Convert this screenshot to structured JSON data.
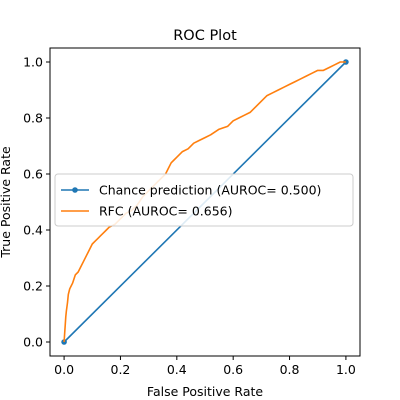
{
  "chart_data": {
    "type": "line",
    "title": "ROC Plot",
    "xlabel": "False Positive Rate",
    "ylabel": "True Positive Rate",
    "xlim": [
      -0.05,
      1.05
    ],
    "ylim": [
      -0.05,
      1.05
    ],
    "x_ticks": [
      0.0,
      0.2,
      0.4,
      0.6,
      0.8,
      1.0
    ],
    "x_tick_labels": [
      "0.0",
      "0.2",
      "0.4",
      "0.6",
      "0.8",
      "1.0"
    ],
    "y_ticks": [
      0.0,
      0.2,
      0.4,
      0.6,
      0.8,
      1.0
    ],
    "y_tick_labels": [
      "0.0",
      "0.2",
      "0.4",
      "0.6",
      "0.8",
      "1.0"
    ],
    "grid": false,
    "legend_position": "center-left",
    "series": [
      {
        "name": "Chance prediction (AUROC= 0.500)",
        "color": "#1f77b4",
        "marker": "circle",
        "x": [
          0.0,
          1.0
        ],
        "y": [
          0.0,
          1.0
        ]
      },
      {
        "name": "RFC (AUROC= 0.656)",
        "color": "#ff7f0e",
        "marker": "none",
        "x": [
          0.0,
          0.002,
          0.004,
          0.006,
          0.008,
          0.012,
          0.015,
          0.02,
          0.025,
          0.03,
          0.04,
          0.05,
          0.06,
          0.07,
          0.08,
          0.09,
          0.1,
          0.11,
          0.12,
          0.13,
          0.14,
          0.15,
          0.16,
          0.18,
          0.2,
          0.22,
          0.24,
          0.26,
          0.28,
          0.3,
          0.32,
          0.34,
          0.36,
          0.37,
          0.38,
          0.39,
          0.4,
          0.42,
          0.44,
          0.46,
          0.48,
          0.5,
          0.52,
          0.55,
          0.58,
          0.6,
          0.62,
          0.64,
          0.66,
          0.68,
          0.7,
          0.72,
          0.74,
          0.76,
          0.78,
          0.8,
          0.82,
          0.84,
          0.86,
          0.88,
          0.9,
          0.92,
          0.94,
          0.96,
          0.98,
          1.0
        ],
        "y": [
          0.0,
          0.03,
          0.06,
          0.09,
          0.11,
          0.14,
          0.17,
          0.19,
          0.2,
          0.21,
          0.24,
          0.25,
          0.27,
          0.29,
          0.31,
          0.33,
          0.35,
          0.36,
          0.37,
          0.38,
          0.39,
          0.4,
          0.41,
          0.42,
          0.44,
          0.46,
          0.47,
          0.49,
          0.52,
          0.54,
          0.56,
          0.58,
          0.6,
          0.62,
          0.64,
          0.65,
          0.66,
          0.68,
          0.69,
          0.71,
          0.72,
          0.73,
          0.74,
          0.76,
          0.77,
          0.79,
          0.8,
          0.81,
          0.82,
          0.84,
          0.86,
          0.88,
          0.89,
          0.9,
          0.91,
          0.92,
          0.93,
          0.94,
          0.95,
          0.96,
          0.97,
          0.97,
          0.98,
          0.99,
          1.0,
          1.0
        ]
      }
    ]
  }
}
